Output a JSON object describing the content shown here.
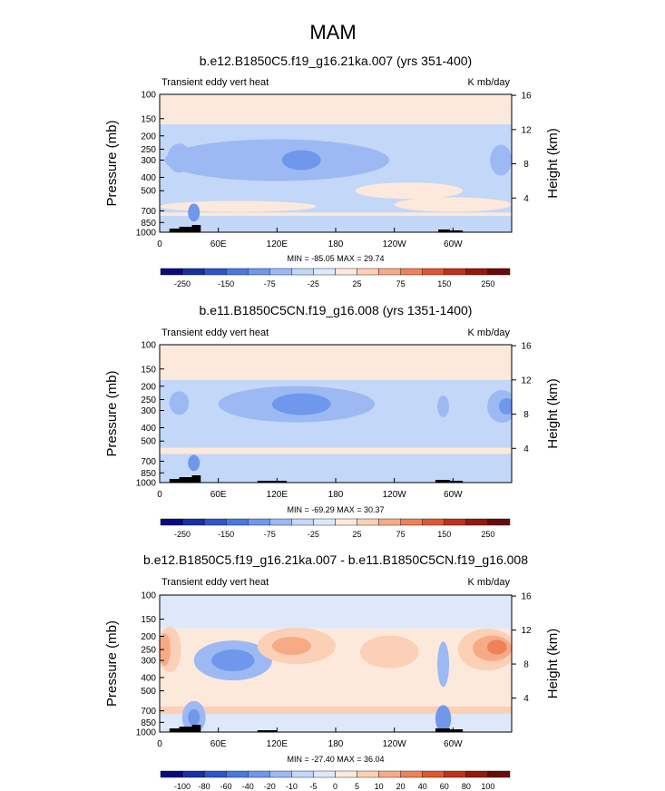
{
  "figure_title": "MAM",
  "colors": {
    "colorbar": [
      "#0a0a80",
      "#1a2fa6",
      "#2f55c8",
      "#4a78e0",
      "#6f97ec",
      "#9cb9f3",
      "#c3d7f8",
      "#dde9fb",
      "#fde9dc",
      "#fbd0b6",
      "#f6ab86",
      "#ef8057",
      "#e05630",
      "#c0311a",
      "#94180e",
      "#6b0b07"
    ],
    "land": "#000000"
  },
  "common": {
    "left_label": "Transient eddy vert heat",
    "right_label": "K mb/day",
    "ylabel": "Pressure (mb)",
    "ylabel_right": "Height (km)",
    "pressure_ticks": [
      "100",
      "150",
      "200",
      "250",
      "300",
      "400",
      "500",
      "700",
      "850",
      "1000"
    ],
    "height_ticks": [
      "16",
      "12",
      "8",
      "4"
    ],
    "lon_ticks": [
      "0",
      "60E",
      "120E",
      "180",
      "120W",
      "60W"
    ]
  },
  "chart_data": [
    {
      "type": "heatmap",
      "title": "b.e12.B1850C5.f19_g16.21ka.007 (yrs 351-400)",
      "stats": "MIN = -85.05  MAX = 29.74",
      "colorbar_labels": [
        "-250",
        "-150",
        "-75",
        "-25",
        "25",
        "75",
        "150",
        "250"
      ],
      "value_unit": "K mb/day",
      "features": [
        {
          "lon": 120,
          "p": 300,
          "value": -40
        },
        {
          "lon": 300,
          "p": 700,
          "value": 5
        },
        {
          "lon": 40,
          "p": 700,
          "value": -25
        }
      ]
    },
    {
      "type": "heatmap",
      "title": "b.e11.B1850C5CN.f19_g16.008 (yrs 1351-1400)",
      "stats": "MIN = -69.29  MAX = 30.37",
      "colorbar_labels": [
        "-250",
        "-150",
        "-75",
        "-25",
        "25",
        "75",
        "150",
        "250"
      ],
      "value_unit": "K mb/day",
      "features": [
        {
          "lon": 140,
          "p": 270,
          "value": -40
        },
        {
          "lon": 355,
          "p": 280,
          "value": -45
        }
      ]
    },
    {
      "type": "heatmap",
      "title": "b.e12.B1850C5.f19_g16.21ka.007 - b.e11.B1850C5CN.f19_g16.008",
      "stats": "MIN = -27.40  MAX = 36.04",
      "colorbar_labels": [
        "-100",
        "-80",
        "-60",
        "-40",
        "-20",
        "-10",
        "-5",
        "0",
        "5",
        "10",
        "20",
        "40",
        "60",
        "80",
        "100"
      ],
      "value_unit": "K mb/day",
      "features": [
        {
          "lon": 75,
          "p": 300,
          "value": -25
        },
        {
          "lon": 130,
          "p": 230,
          "value": 25
        },
        {
          "lon": 355,
          "p": 240,
          "value": 30
        }
      ]
    }
  ]
}
